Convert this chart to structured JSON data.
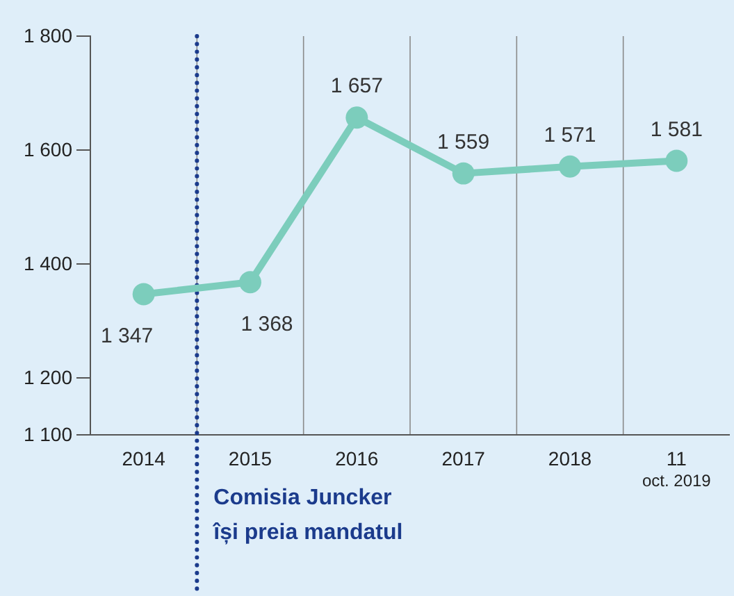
{
  "chart_data": {
    "type": "line",
    "categories": [
      "2014",
      "2015",
      "2016",
      "2017",
      "2018",
      "11\noct. 2019"
    ],
    "series": [
      {
        "color": "#7ccdbc",
        "values": [
          1347,
          1368,
          1657,
          1559,
          1571,
          1581
        ]
      }
    ],
    "ylim": [
      1100,
      1800
    ],
    "yticks": [
      {
        "value": 1100,
        "label": "1 100"
      },
      {
        "value": 1200,
        "label": "1 200"
      },
      {
        "value": 1400,
        "label": "1 400"
      },
      {
        "value": 1600,
        "label": "1 600"
      },
      {
        "value": 1800,
        "label": "1 800"
      }
    ],
    "data_labels": true,
    "grid": "x",
    "marker": "circle",
    "line_style": "solid",
    "ref_lines": [
      {
        "axis": "x",
        "value": "2015",
        "label": "Comisia Juncker\nîși preia mandatul",
        "color": "#1b3b8c",
        "line_style": "dotted"
      }
    ]
  }
}
